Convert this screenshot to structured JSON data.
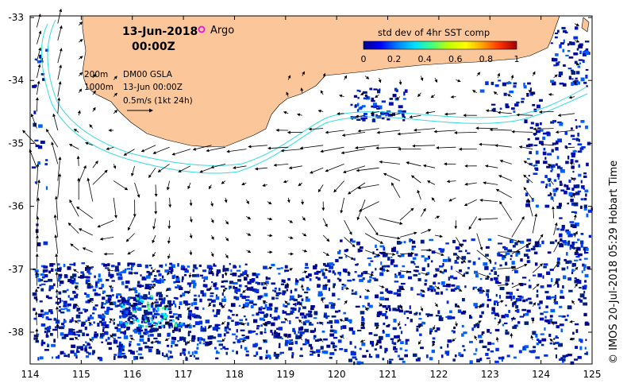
{
  "title": {
    "date": "13-Jun-2018",
    "time": "00:00Z",
    "argo_label": "Argo"
  },
  "legend": {
    "contour_200": "200m",
    "contour_1000": "1000m",
    "gsla_product": "DM00 GSLA",
    "gsla_time": "13-Jun 00:00Z",
    "vector_scale": "0.5m/s (1kt 24h)"
  },
  "colorbar": {
    "title": "std dev of 4hr SST comp",
    "ticks": [
      "0",
      "0.2",
      "0.4",
      "0.6",
      "0.8",
      "1"
    ],
    "stops": [
      "#00008c",
      "#0000ff",
      "#0080ff",
      "#00e0ff",
      "#40ff80",
      "#c0ff00",
      "#ffff00",
      "#ffa000",
      "#ff3000",
      "#a00000"
    ]
  },
  "axes": {
    "x_ticks": [
      "114",
      "115",
      "116",
      "117",
      "118",
      "119",
      "120",
      "121",
      "122",
      "123",
      "124",
      "125"
    ],
    "y_ticks": [
      "-33",
      "-34",
      "-35",
      "-36",
      "-37",
      "-38"
    ],
    "lon_range": [
      114,
      125
    ],
    "lat_range": [
      -38.5,
      -33
    ]
  },
  "colors": {
    "land": "#fbc79a",
    "contour": "#33dddd",
    "argo_marker": "#e020e0",
    "sst_dark": "#00008c",
    "sst_mid": "#0030e0"
  },
  "credit": "© IMOS 20-Jul-2018 05:29 Hobart Time"
}
